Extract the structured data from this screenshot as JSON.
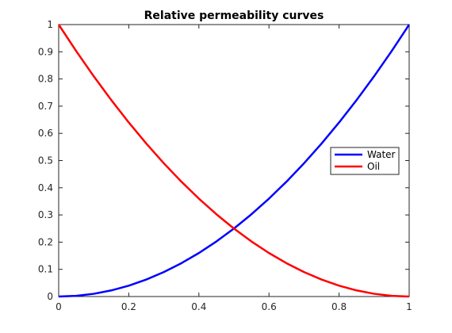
{
  "chart_data": {
    "type": "line",
    "title": "Relative permeability curves",
    "xlabel": "",
    "ylabel": "",
    "xlim": [
      0,
      1
    ],
    "ylim": [
      0,
      1
    ],
    "x_ticks": [
      "0",
      "0.2",
      "0.4",
      "0.6",
      "0.8",
      "1"
    ],
    "y_ticks": [
      "0",
      "0.1",
      "0.2",
      "0.3",
      "0.4",
      "0.5",
      "0.6",
      "0.7",
      "0.8",
      "0.9",
      "1"
    ],
    "grid": false,
    "legend_position": "right",
    "x": [
      0,
      0.05,
      0.1,
      0.15,
      0.2,
      0.25,
      0.3,
      0.35,
      0.4,
      0.45,
      0.5,
      0.55,
      0.6,
      0.65,
      0.7,
      0.75,
      0.8,
      0.85,
      0.9,
      0.95,
      1
    ],
    "series": [
      {
        "name": "Water",
        "color": "#0000ff",
        "values": [
          0,
          0.0025,
          0.01,
          0.0225,
          0.04,
          0.0625,
          0.09,
          0.1225,
          0.16,
          0.2025,
          0.25,
          0.3025,
          0.36,
          0.4225,
          0.49,
          0.5625,
          0.64,
          0.7225,
          0.81,
          0.9025,
          1
        ]
      },
      {
        "name": "Oil",
        "color": "#ff0000",
        "values": [
          1,
          0.9025,
          0.81,
          0.7225,
          0.64,
          0.5625,
          0.49,
          0.4225,
          0.36,
          0.3025,
          0.25,
          0.2025,
          0.16,
          0.1225,
          0.09,
          0.0625,
          0.04,
          0.0225,
          0.01,
          0.0025,
          0
        ]
      }
    ]
  }
}
